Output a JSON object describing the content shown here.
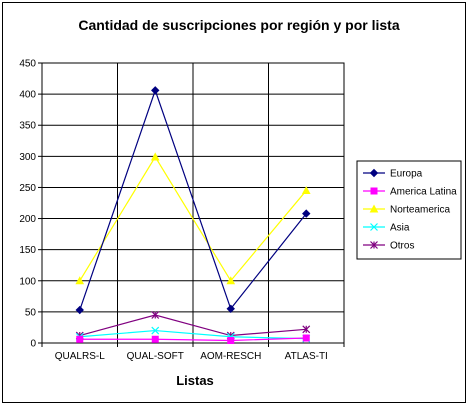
{
  "chart_data": {
    "type": "line",
    "title": "Cantidad de suscripciones por región y por lista",
    "xlabel": "Listas",
    "ylabel": "",
    "categories": [
      "QUALRS-L",
      "QUAL-SOFT",
      "AOM-RESCH",
      "ATLAS-TI"
    ],
    "ylim": [
      0,
      450
    ],
    "yticks": [
      0,
      50,
      100,
      150,
      200,
      250,
      300,
      350,
      400,
      450
    ],
    "grid": true,
    "legend_position": "right",
    "series": [
      {
        "name": "Europa",
        "values": [
          53,
          406,
          55,
          208
        ],
        "color": "#000080",
        "marker": "diamond"
      },
      {
        "name": "America Latina",
        "values": [
          6,
          6,
          4,
          8
        ],
        "color": "#ff00ff",
        "marker": "square"
      },
      {
        "name": "Norteamerica",
        "values": [
          100,
          299,
          100,
          245
        ],
        "color": "#ffff00",
        "marker": "triangle"
      },
      {
        "name": "Asia",
        "values": [
          10,
          20,
          10,
          7
        ],
        "color": "#00ffff",
        "marker": "x"
      },
      {
        "name": "Otros",
        "values": [
          12,
          45,
          12,
          22
        ],
        "color": "#800080",
        "marker": "star"
      }
    ]
  }
}
